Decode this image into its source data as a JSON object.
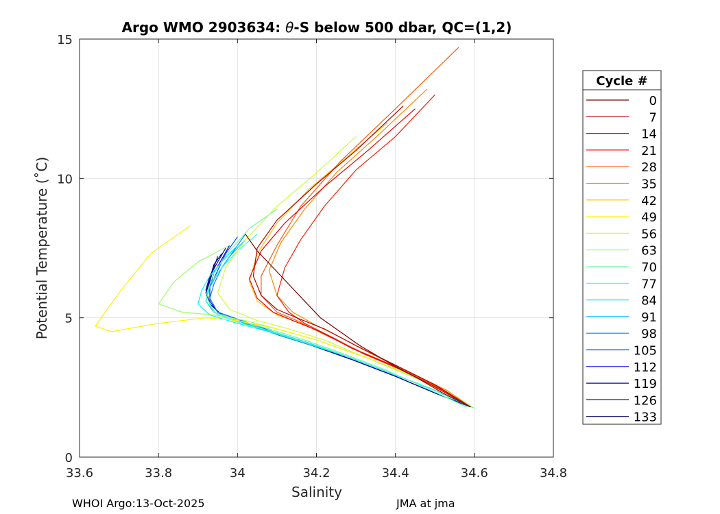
{
  "chart_data": {
    "type": "line",
    "title": "Argo WMO 2903634: θ-S below 500 dbar,  QC=(1,2)",
    "title_parts": [
      "Argo WMO 2903634: ",
      "θ",
      "-S below 500 dbar,  QC=(1,2)"
    ],
    "xlabel": "Salinity",
    "ylabel": "Potential Temperature (˚C)",
    "xlim": [
      33.6,
      34.8
    ],
    "ylim": [
      0,
      15
    ],
    "xticks": [
      33.6,
      33.8,
      34,
      34.2,
      34.4,
      34.6,
      34.8
    ],
    "xtick_labels": [
      "33.6",
      "33.8",
      "34",
      "34.2",
      "34.4",
      "34.6",
      "34.8"
    ],
    "yticks": [
      0,
      5,
      10,
      15
    ],
    "ytick_labels": [
      "0",
      "5",
      "10",
      "15"
    ],
    "grid": true,
    "legend": {
      "title": "Cycle #",
      "placement": "outside-right",
      "entries": [
        "0",
        "7",
        "14",
        "21",
        "28",
        "35",
        "42",
        "49",
        "56",
        "63",
        "70",
        "77",
        "84",
        "91",
        "98",
        "105",
        "112",
        "119",
        "126",
        "133"
      ],
      "colors": [
        "#7f0000",
        "#b30000",
        "#e60000",
        "#ff1a00",
        "#ff5500",
        "#ff8800",
        "#ffbb00",
        "#fff000",
        "#ccff33",
        "#99ff66",
        "#66ff99",
        "#33ffcc",
        "#00f0ff",
        "#00bbff",
        "#0080ff",
        "#0044ff",
        "#0000ee",
        "#0000bb",
        "#000088",
        "#000066"
      ]
    },
    "series_note": "134 profiles (cycles 0-133), each a theta-S curve below 500 dbar; representative shapes per legend cycle",
    "series": [
      {
        "name": "0",
        "s": [
          34.02,
          34.05,
          34.09,
          34.13,
          34.17,
          34.21,
          34.26,
          34.31,
          34.37,
          34.42,
          34.46,
          34.52,
          34.59
        ],
        "t": [
          8.0,
          7.4,
          6.8,
          6.2,
          5.6,
          5.0,
          4.5,
          4.0,
          3.5,
          3.1,
          2.8,
          2.3,
          1.8
        ]
      },
      {
        "name": "7",
        "s": [
          34.42,
          34.3,
          34.2,
          34.1,
          34.05,
          34.04,
          34.06,
          34.1,
          34.15,
          34.22,
          34.3,
          34.4,
          34.5,
          34.59
        ],
        "t": [
          12.6,
          11.0,
          9.8,
          8.5,
          7.5,
          6.5,
          5.8,
          5.3,
          5.0,
          4.6,
          4.0,
          3.3,
          2.6,
          1.8
        ]
      },
      {
        "name": "14",
        "s": [
          34.45,
          34.33,
          34.22,
          34.12,
          34.06,
          34.03,
          34.05,
          34.09,
          34.14,
          34.21,
          34.29,
          34.39,
          34.49,
          34.59
        ],
        "t": [
          12.5,
          11.0,
          9.7,
          8.4,
          7.4,
          6.4,
          5.7,
          5.2,
          4.9,
          4.5,
          3.9,
          3.3,
          2.6,
          1.8
        ]
      },
      {
        "name": "21",
        "s": [
          34.5,
          34.4,
          34.3,
          34.22,
          34.16,
          34.12,
          34.1,
          34.13,
          34.17,
          34.24,
          34.32,
          34.42,
          34.52,
          34.59
        ],
        "t": [
          13.0,
          11.5,
          10.3,
          9.0,
          7.8,
          6.8,
          5.8,
          5.2,
          4.8,
          4.3,
          3.7,
          3.1,
          2.4,
          1.8
        ]
      },
      {
        "name": "28",
        "s": [
          34.56,
          34.4,
          34.26,
          34.16,
          34.1,
          34.06,
          34.06,
          34.1,
          34.15,
          34.22,
          34.31,
          34.41,
          34.51,
          34.59
        ],
        "t": [
          14.7,
          12.5,
          10.6,
          9.0,
          7.6,
          6.5,
          5.8,
          5.2,
          4.9,
          4.4,
          3.8,
          3.2,
          2.5,
          1.8
        ]
      },
      {
        "name": "35",
        "s": [
          34.48,
          34.36,
          34.25,
          34.17,
          34.11,
          34.08,
          34.1,
          34.14,
          34.19,
          34.26,
          34.34,
          34.44,
          34.53,
          34.59
        ],
        "t": [
          13.2,
          11.6,
          10.2,
          8.9,
          7.7,
          6.7,
          5.8,
          5.2,
          4.8,
          4.3,
          3.7,
          3.0,
          2.4,
          1.8
        ]
      },
      {
        "name": "42",
        "s": [
          34.38,
          34.28,
          34.18,
          34.1,
          34.05,
          34.03,
          34.05,
          34.1,
          34.16,
          34.24,
          34.32,
          34.42,
          34.52,
          34.59
        ],
        "t": [
          12.0,
          10.8,
          9.6,
          8.4,
          7.3,
          6.3,
          5.6,
          5.1,
          4.8,
          4.3,
          3.7,
          3.1,
          2.4,
          1.8
        ]
      },
      {
        "name": "49",
        "s": [
          33.88,
          33.78,
          33.7,
          33.64,
          33.68,
          33.8,
          33.92,
          34.0,
          34.1,
          34.2,
          34.32,
          34.45,
          34.55,
          34.59
        ],
        "t": [
          8.3,
          7.3,
          5.9,
          4.7,
          4.5,
          4.8,
          5.0,
          4.9,
          4.6,
          4.2,
          3.6,
          2.9,
          2.2,
          1.8
        ]
      },
      {
        "name": "56",
        "s": [
          34.3,
          34.2,
          34.1,
          34.02,
          33.97,
          33.95,
          33.98,
          34.05,
          34.13,
          34.22,
          34.32,
          34.43,
          34.53,
          34.59
        ],
        "t": [
          11.5,
          10.2,
          9.0,
          7.8,
          6.8,
          5.9,
          5.3,
          4.9,
          4.6,
          4.2,
          3.6,
          3.0,
          2.3,
          1.8
        ]
      },
      {
        "name": "63",
        "s": [
          33.98,
          33.9,
          33.84,
          33.8,
          33.86,
          33.94,
          34.02,
          34.1,
          34.2,
          34.32,
          34.44,
          34.54,
          34.6
        ],
        "t": [
          7.6,
          7.0,
          6.3,
          5.5,
          5.2,
          5.1,
          4.9,
          4.6,
          4.2,
          3.6,
          2.9,
          2.3,
          1.75
        ]
      },
      {
        "name": "70",
        "s": [
          34.1,
          34.03,
          33.98,
          33.94,
          33.92,
          33.94,
          34.0,
          34.08,
          34.17,
          34.27,
          34.38,
          34.49,
          34.58
        ],
        "t": [
          8.9,
          8.2,
          7.4,
          6.6,
          5.8,
          5.2,
          4.9,
          4.6,
          4.2,
          3.7,
          3.1,
          2.4,
          1.8
        ]
      },
      {
        "name": "77",
        "s": [
          34.05,
          34.0,
          33.96,
          33.93,
          33.92,
          33.95,
          34.01,
          34.09,
          34.18,
          34.28,
          34.39,
          34.5,
          34.6
        ],
        "t": [
          8.0,
          7.4,
          6.8,
          6.2,
          5.6,
          5.1,
          4.8,
          4.5,
          4.1,
          3.6,
          3.0,
          2.4,
          1.75
        ]
      },
      {
        "name": "84",
        "s": [
          34.0,
          33.96,
          33.93,
          33.91,
          33.9,
          33.93,
          34.0,
          34.08,
          34.17,
          34.28,
          34.39,
          34.5,
          34.59
        ],
        "t": [
          7.6,
          7.0,
          6.5,
          6.0,
          5.5,
          5.1,
          4.8,
          4.5,
          4.1,
          3.6,
          3.0,
          2.4,
          1.8
        ]
      },
      {
        "name": "91",
        "s": [
          34.02,
          33.98,
          33.95,
          33.93,
          33.92,
          33.94,
          34.0,
          34.08,
          34.17,
          34.28,
          34.39,
          34.5,
          34.59
        ],
        "t": [
          7.8,
          7.2,
          6.6,
          6.1,
          5.6,
          5.2,
          4.9,
          4.5,
          4.1,
          3.6,
          3.0,
          2.4,
          1.8
        ]
      },
      {
        "name": "98",
        "s": [
          34.02,
          33.99,
          33.96,
          33.94,
          33.93,
          33.95,
          34.01,
          34.09,
          34.18,
          34.28,
          34.39,
          34.5,
          34.59
        ],
        "t": [
          8.0,
          7.4,
          6.8,
          6.2,
          5.7,
          5.2,
          4.9,
          4.5,
          4.1,
          3.6,
          3.0,
          2.4,
          1.8
        ]
      },
      {
        "name": "105",
        "s": [
          34.0,
          33.97,
          33.95,
          33.93,
          33.92,
          33.94,
          34.0,
          34.08,
          34.17,
          34.28,
          34.39,
          34.5,
          34.59
        ],
        "t": [
          7.9,
          7.3,
          6.7,
          6.1,
          5.6,
          5.2,
          4.9,
          4.5,
          4.1,
          3.6,
          3.0,
          2.4,
          1.8
        ]
      },
      {
        "name": "112",
        "s": [
          33.98,
          33.96,
          33.94,
          33.93,
          33.93,
          33.95,
          34.01,
          34.09,
          34.18,
          34.28,
          34.39,
          34.5,
          34.59
        ],
        "t": [
          7.6,
          7.1,
          6.6,
          6.1,
          5.6,
          5.2,
          4.9,
          4.5,
          4.1,
          3.6,
          3.0,
          2.4,
          1.8
        ]
      },
      {
        "name": "119",
        "s": [
          33.97,
          33.95,
          33.93,
          33.92,
          33.93,
          33.96,
          34.02,
          34.1,
          34.19,
          34.29,
          34.4,
          34.5,
          34.59
        ],
        "t": [
          7.5,
          7.0,
          6.5,
          6.0,
          5.5,
          5.1,
          4.8,
          4.4,
          4.0,
          3.5,
          2.9,
          2.3,
          1.8
        ]
      },
      {
        "name": "126",
        "s": [
          33.96,
          33.94,
          33.93,
          33.92,
          33.93,
          33.96,
          34.02,
          34.1,
          34.19,
          34.29,
          34.4,
          34.5,
          34.59
        ],
        "t": [
          7.3,
          6.9,
          6.4,
          5.9,
          5.5,
          5.1,
          4.8,
          4.4,
          4.0,
          3.5,
          2.9,
          2.3,
          1.8
        ]
      },
      {
        "name": "133",
        "s": [
          33.95,
          33.94,
          33.93,
          33.92,
          33.93,
          33.96,
          34.02,
          34.1,
          34.19,
          34.29,
          34.4,
          34.5,
          34.59
        ],
        "t": [
          7.2,
          6.8,
          6.3,
          5.9,
          5.5,
          5.1,
          4.8,
          4.4,
          4.0,
          3.5,
          2.9,
          2.3,
          1.8
        ]
      }
    ]
  },
  "footer": {
    "left": "WHOI Argo:13-Oct-2025",
    "right": "JMA at jma"
  }
}
